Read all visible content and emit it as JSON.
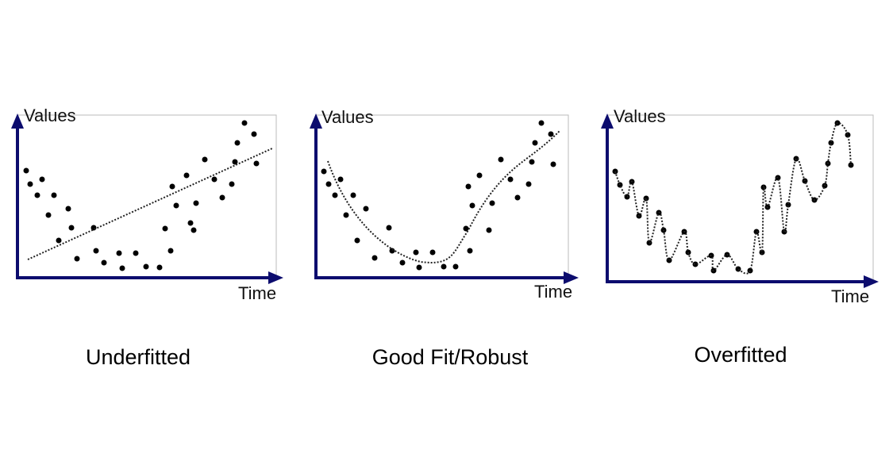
{
  "panels": [
    {
      "y_label": "Values",
      "x_label": "Time",
      "caption": "Underfitted"
    },
    {
      "y_label": "Values",
      "x_label": "Time",
      "caption": "Good Fit/Robust"
    },
    {
      "y_label": "Values",
      "x_label": "Time",
      "caption": "Overfitted"
    }
  ]
}
